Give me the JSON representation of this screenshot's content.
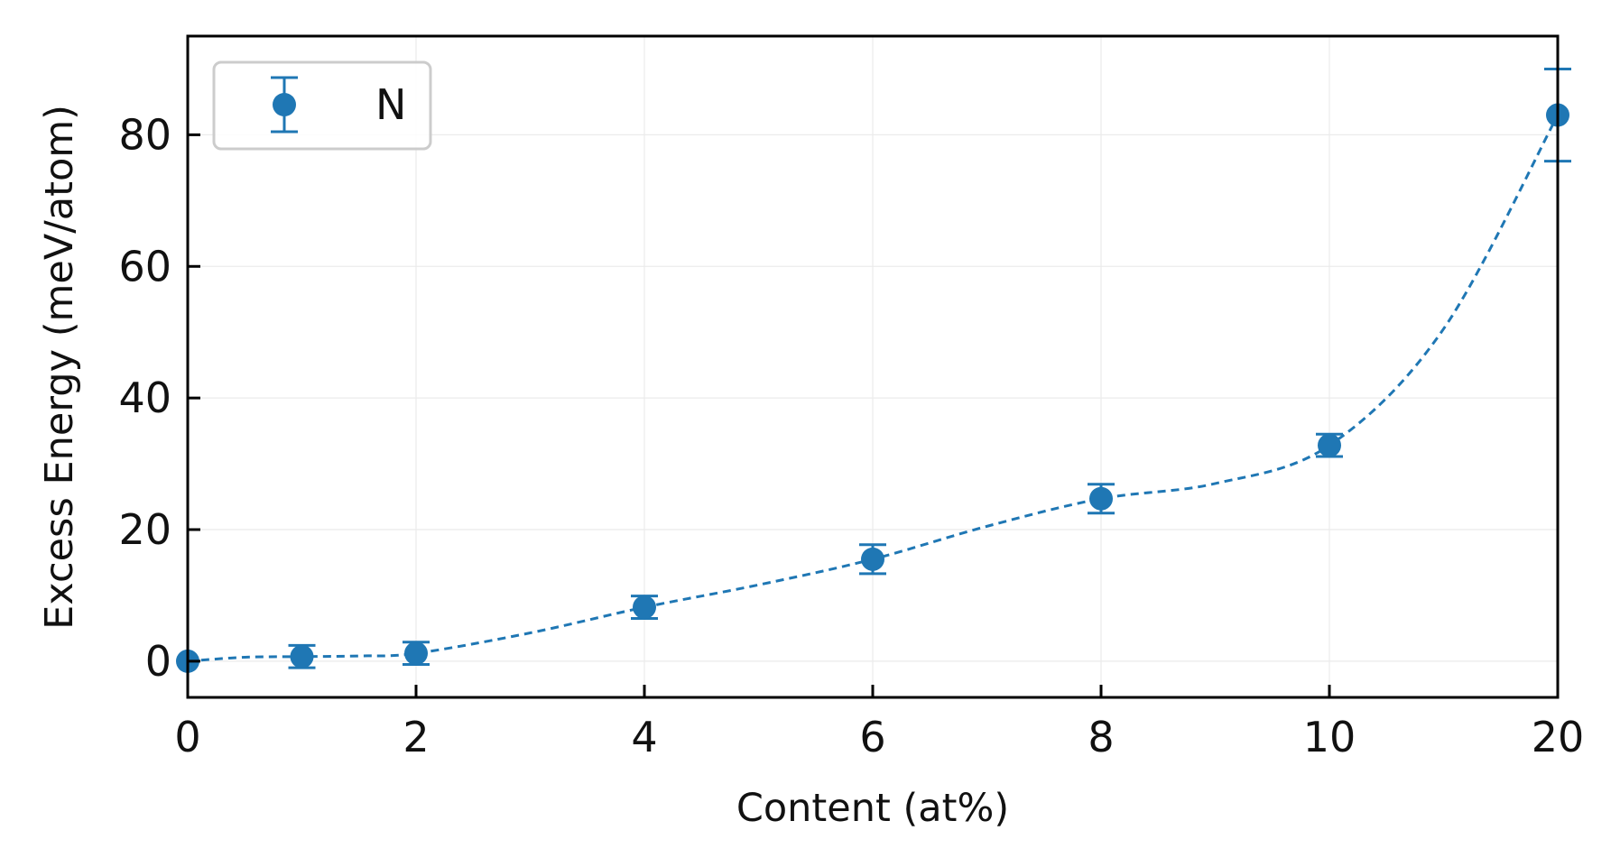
{
  "chart_data": {
    "type": "scatter",
    "title": "",
    "xlabel": "Content (at%)",
    "ylabel": "Excess Energy (meV/atom)",
    "x_tick_labels": [
      "0",
      "2",
      "4",
      "6",
      "8",
      "10",
      "20"
    ],
    "y_ticks": [
      0,
      20,
      40,
      60,
      80
    ],
    "y_tick_labels": [
      "0",
      "20",
      "40",
      "60",
      "80"
    ],
    "ylim": [
      -5.5,
      95
    ],
    "x_scale": "categorical-positions (0,2,4,6,8,10,20 evenly spaced; 1 between 0 and 2)",
    "grid": true,
    "legend_position": "top-left",
    "series": [
      {
        "name": "N",
        "color": "#1f77b4",
        "marker": "circle",
        "x": [
          0,
          1,
          2,
          4,
          6,
          8,
          10,
          20
        ],
        "y": [
          0,
          0.7,
          1.2,
          8.2,
          15.5,
          24.7,
          32.8,
          83
        ],
        "y_err": [
          0,
          1.7,
          1.7,
          1.7,
          2.2,
          2.2,
          1.7,
          7
        ],
        "fit_line": {
          "style": "dashed",
          "x": [
            0,
            0.5,
            1,
            1.5,
            2,
            3,
            4,
            5,
            6,
            7,
            8,
            9,
            10,
            15,
            20
          ],
          "y": [
            0,
            0.6,
            0.7,
            0.8,
            1.2,
            4.3,
            8.2,
            11.6,
            15.5,
            20.5,
            24.7,
            27,
            32.8,
            50.5,
            83
          ]
        }
      }
    ]
  }
}
